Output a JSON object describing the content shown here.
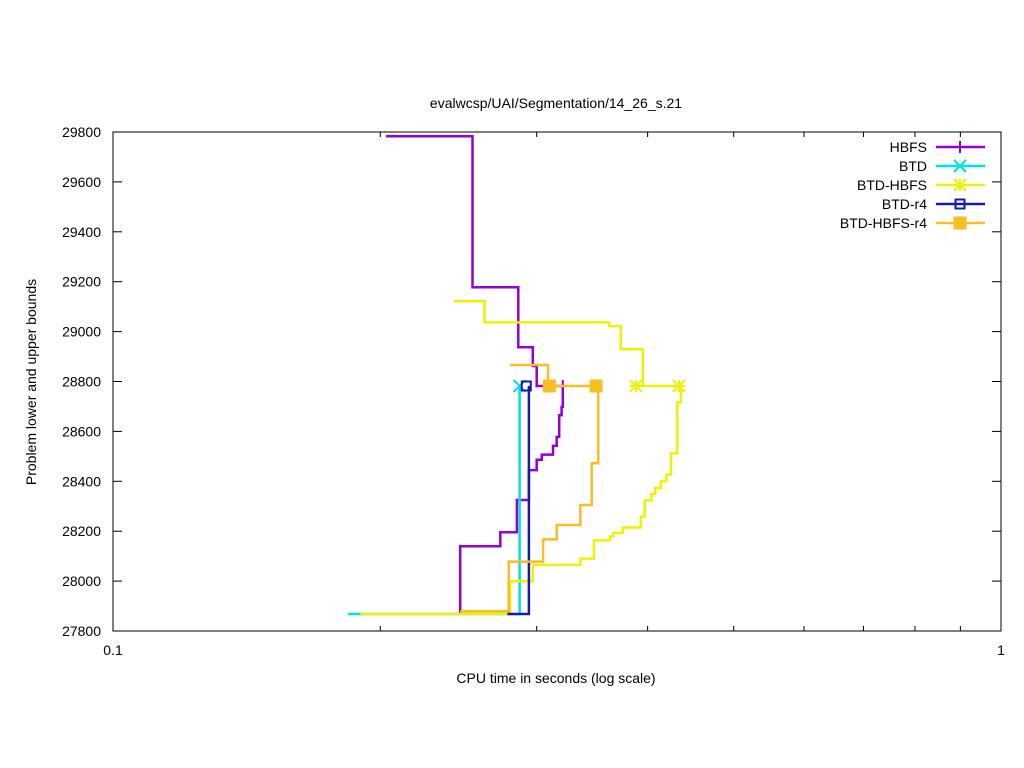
{
  "chart_data": {
    "type": "line",
    "title": "evalwcsp/UAI/Segmentation/14_26_s.21",
    "xlabel": "CPU time in seconds (log scale)",
    "ylabel": "Problem lower and upper bounds",
    "x_scale": "log",
    "xlim": [
      0.1,
      1
    ],
    "ylim": [
      27800,
      29800
    ],
    "x_ticks": [
      0.1,
      1
    ],
    "x_tick_labels": [
      "0.1",
      "1"
    ],
    "y_ticks": [
      27800,
      28000,
      28200,
      28400,
      28600,
      28800,
      29000,
      29200,
      29400,
      29600,
      29800
    ],
    "y_tick_labels": [
      "27800",
      "28000",
      "28200",
      "28400",
      "28600",
      "28800",
      "29000",
      "29200",
      "29400",
      "29600",
      "29800"
    ],
    "grid": false,
    "legend": "top-right",
    "series": [
      {
        "name": "HBFS",
        "color": "#9400d3",
        "marker": "plus",
        "lower": [
          [
            0.246,
            27868
          ],
          [
            0.246,
            28140
          ],
          [
            0.273,
            28140
          ],
          [
            0.273,
            28196
          ],
          [
            0.285,
            28196
          ],
          [
            0.285,
            28325
          ],
          [
            0.294,
            28325
          ],
          [
            0.294,
            28445
          ],
          [
            0.3,
            28445
          ],
          [
            0.3,
            28486
          ],
          [
            0.304,
            28486
          ],
          [
            0.304,
            28507
          ],
          [
            0.313,
            28507
          ],
          [
            0.313,
            28542
          ],
          [
            0.316,
            28542
          ],
          [
            0.316,
            28578
          ],
          [
            0.318,
            28578
          ],
          [
            0.318,
            28665
          ],
          [
            0.32,
            28665
          ],
          [
            0.32,
            28698
          ],
          [
            0.321,
            28698
          ],
          [
            0.321,
            28782
          ]
        ],
        "upper": [
          [
            0.203,
            29783
          ],
          [
            0.254,
            29783
          ],
          [
            0.254,
            29178
          ],
          [
            0.286,
            29178
          ],
          [
            0.286,
            28937
          ],
          [
            0.297,
            28937
          ],
          [
            0.297,
            28862
          ],
          [
            0.3,
            28862
          ],
          [
            0.3,
            28782
          ],
          [
            0.321,
            28782
          ]
        ],
        "markers": [
          [
            0.321,
            28782
          ]
        ]
      },
      {
        "name": "BTD",
        "color": "#00e0e0",
        "marker": "x",
        "lower": [
          [
            0.184,
            27868
          ],
          [
            0.287,
            27868
          ],
          [
            0.287,
            28782
          ]
        ],
        "upper": [],
        "markers": [
          [
            0.287,
            28782
          ]
        ]
      },
      {
        "name": "BTD-HBFS",
        "color": "#f0f000",
        "marker": "star",
        "lower": [
          [
            0.19,
            27868
          ],
          [
            0.28,
            27868
          ],
          [
            0.28,
            28000
          ],
          [
            0.297,
            28000
          ],
          [
            0.297,
            28065
          ],
          [
            0.336,
            28065
          ],
          [
            0.336,
            28090
          ],
          [
            0.348,
            28090
          ],
          [
            0.348,
            28163
          ],
          [
            0.363,
            28163
          ],
          [
            0.363,
            28179
          ],
          [
            0.366,
            28179
          ],
          [
            0.366,
            28193
          ],
          [
            0.375,
            28193
          ],
          [
            0.375,
            28215
          ],
          [
            0.393,
            28215
          ],
          [
            0.393,
            28258
          ],
          [
            0.397,
            28258
          ],
          [
            0.397,
            28323
          ],
          [
            0.404,
            28323
          ],
          [
            0.404,
            28349
          ],
          [
            0.408,
            28349
          ],
          [
            0.408,
            28373
          ],
          [
            0.414,
            28373
          ],
          [
            0.414,
            28400
          ],
          [
            0.42,
            28400
          ],
          [
            0.42,
            28427
          ],
          [
            0.425,
            28427
          ],
          [
            0.425,
            28512
          ],
          [
            0.432,
            28512
          ],
          [
            0.432,
            28717
          ],
          [
            0.436,
            28717
          ],
          [
            0.436,
            28782
          ]
        ],
        "upper": [
          [
            0.242,
            29122
          ],
          [
            0.262,
            29122
          ],
          [
            0.262,
            29037
          ],
          [
            0.362,
            29037
          ],
          [
            0.362,
            29022
          ],
          [
            0.373,
            29022
          ],
          [
            0.373,
            28929
          ],
          [
            0.395,
            28929
          ],
          [
            0.395,
            28782
          ],
          [
            0.436,
            28782
          ]
        ],
        "markers": [
          [
            0.388,
            28782
          ],
          [
            0.434,
            28782
          ]
        ]
      },
      {
        "name": "BTD-r4",
        "color": "#1a1aa8",
        "marker": "square",
        "lower": [
          [
            0.278,
            27868
          ],
          [
            0.294,
            27868
          ],
          [
            0.294,
            28782
          ]
        ],
        "upper": [],
        "markers": [
          [
            0.292,
            28782
          ]
        ]
      },
      {
        "name": "BTD-HBFS-r4",
        "color": "#f7be26",
        "marker": "filled-square",
        "lower": [
          [
            0.246,
            27879
          ],
          [
            0.279,
            27879
          ],
          [
            0.279,
            28078
          ],
          [
            0.305,
            28078
          ],
          [
            0.305,
            28167
          ],
          [
            0.316,
            28167
          ],
          [
            0.316,
            28225
          ],
          [
            0.336,
            28225
          ],
          [
            0.336,
            28305
          ],
          [
            0.346,
            28305
          ],
          [
            0.346,
            28472
          ],
          [
            0.352,
            28472
          ],
          [
            0.352,
            28782
          ]
        ],
        "upper": [
          [
            0.28,
            28866
          ],
          [
            0.309,
            28866
          ],
          [
            0.309,
            28782
          ],
          [
            0.352,
            28782
          ]
        ],
        "markers": [
          [
            0.31,
            28782
          ],
          [
            0.35,
            28782
          ]
        ]
      }
    ]
  }
}
